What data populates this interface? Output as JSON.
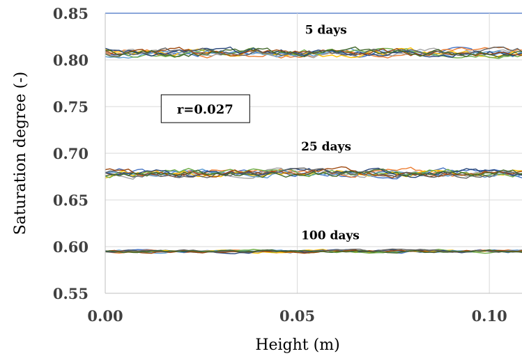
{
  "chart_data": {
    "type": "line",
    "xlabel": "Height (m)",
    "ylabel": "Saturation degree (-)",
    "xlim": [
      0,
      0.1085
    ],
    "ylim": [
      0.55,
      0.85
    ],
    "x_ticks": [
      "0.00",
      "0.05",
      "0.10"
    ],
    "x_tick_values": [
      0.0,
      0.05,
      0.1
    ],
    "y_ticks": [
      "0.55",
      "0.60",
      "0.65",
      "0.70",
      "0.75",
      "0.80",
      "0.85"
    ],
    "y_tick_values": [
      0.55,
      0.6,
      0.65,
      0.7,
      0.75,
      0.8,
      0.85
    ],
    "grid": true,
    "annotations": [
      {
        "text": "5 days",
        "x": 0.052,
        "y": 0.828
      },
      {
        "text": "25 days",
        "x": 0.051,
        "y": 0.703
      },
      {
        "text": "100 days",
        "x": 0.051,
        "y": 0.608
      }
    ],
    "box_label": {
      "text": "r=0.027",
      "x": 0.026,
      "y": 0.747
    },
    "groups": [
      {
        "label": "5 days",
        "mean": 0.808,
        "amplitude": 0.008
      },
      {
        "label": "25 days",
        "mean": 0.679,
        "amplitude": 0.008
      },
      {
        "label": "100 days",
        "mean": 0.595,
        "amplitude": 0.003
      }
    ],
    "series": [
      {
        "color": "#4472C4"
      },
      {
        "color": "#ED7D31"
      },
      {
        "color": "#A5A5A5"
      },
      {
        "color": "#FFC000"
      },
      {
        "color": "#5B9BD5"
      },
      {
        "color": "#70AD47"
      },
      {
        "color": "#264478"
      },
      {
        "color": "#9E480E"
      },
      {
        "color": "#636363"
      },
      {
        "color": "#43682B"
      }
    ]
  }
}
